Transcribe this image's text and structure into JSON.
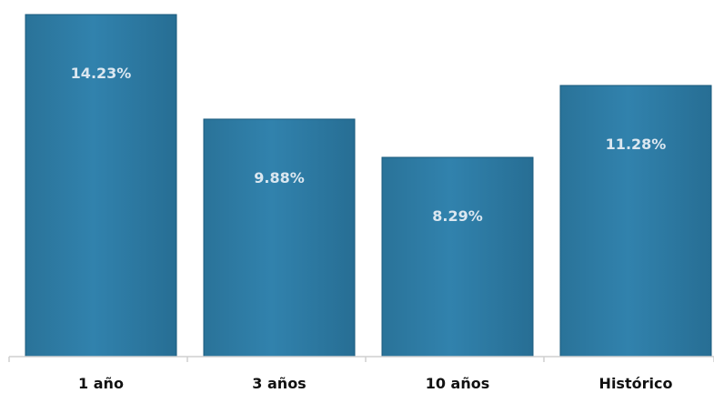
{
  "chart_data": {
    "type": "bar",
    "categories": [
      "1 año",
      "3 años",
      "10 años",
      "Histórico"
    ],
    "values": [
      14.23,
      9.88,
      8.29,
      11.28
    ],
    "data_labels": [
      "14.23%",
      "9.88%",
      "8.29%",
      "11.28%"
    ],
    "ylim": [
      0,
      14.23
    ],
    "grid": false,
    "legend": "none",
    "colors": {
      "bar_fill": "#2d7ca3",
      "bar_fill_dark": "#1f6488",
      "bar_edge": "#1a5a7c",
      "label_text": "#dbe7f0",
      "axis": "#cfcfcf",
      "category_text": "#111111"
    }
  }
}
